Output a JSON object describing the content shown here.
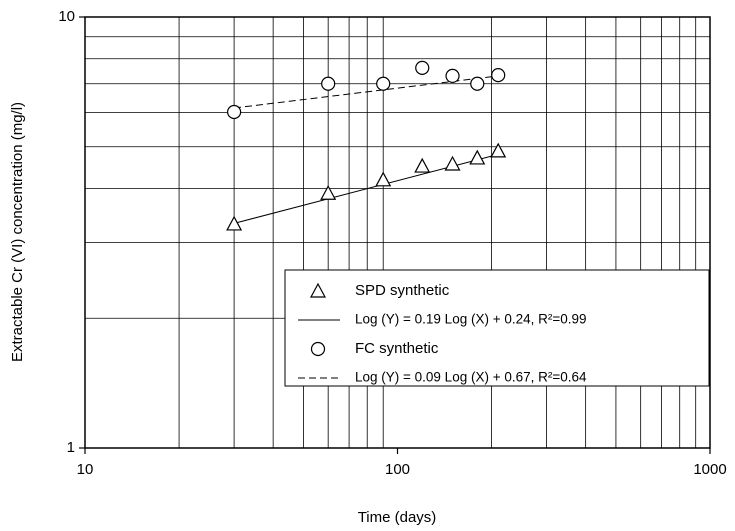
{
  "chart_data": {
    "type": "scatter",
    "x_label": "Time (days)",
    "y_label": "Extractable Cr (VI) concentration (mg/l)",
    "xlog": true,
    "ylog": true,
    "grid": true,
    "xlim": [
      10,
      1000
    ],
    "ylim": [
      1,
      10
    ],
    "xticks": [
      10,
      100,
      1000
    ],
    "yticks": [
      1,
      10
    ],
    "xminor": [
      20,
      30,
      40,
      50,
      60,
      70,
      80,
      90,
      200,
      300,
      400,
      500,
      600,
      700,
      800,
      900
    ],
    "yminor": [
      2,
      3,
      4,
      5,
      6,
      7,
      8,
      9
    ],
    "legend": "lower-right",
    "series": [
      {
        "name": "SPD synthetic",
        "marker": "triangle",
        "color": "#000000",
        "x": [
          30,
          60,
          90,
          120,
          150,
          180,
          210
        ],
        "values": [
          3.31,
          3.9,
          4.19,
          4.51,
          4.56,
          4.71,
          4.89
        ]
      },
      {
        "name": "Log (Y) = 0.19 Log (X) + 0.24, R²=0.99",
        "marker": "solid-line",
        "color": "#000000",
        "x": [
          30,
          210
        ],
        "values": [
          3.32,
          4.8
        ]
      },
      {
        "name": "FC synthetic",
        "marker": "circle",
        "color": "#000000",
        "x": [
          30,
          60,
          90,
          120,
          150,
          180,
          210
        ],
        "values": [
          6.02,
          7.0,
          7.0,
          7.62,
          7.3,
          7.0,
          7.33
        ]
      },
      {
        "name": "Log (Y) = 0.09 Log (X) + 0.67, R²=0.64",
        "marker": "dashed-line",
        "color": "#000000",
        "x": [
          30,
          210
        ],
        "values": [
          6.15,
          7.3
        ]
      }
    ]
  }
}
